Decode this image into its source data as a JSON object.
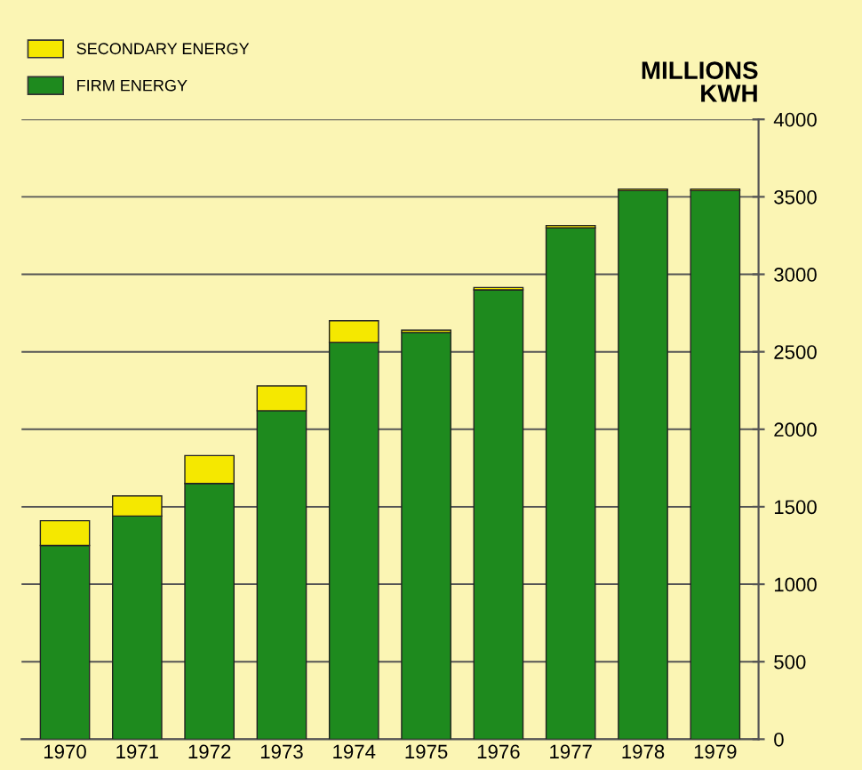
{
  "chart_data": {
    "type": "bar",
    "stacked": true,
    "ylabel": "MILLIONS\nKWH",
    "categories": [
      "1970",
      "1971",
      "1972",
      "1973",
      "1974",
      "1975",
      "1976",
      "1977",
      "1978",
      "1979"
    ],
    "series": [
      {
        "name": "FIRM ENERGY",
        "color": "#1e8a1e",
        "values": [
          1250,
          1440,
          1650,
          2120,
          2560,
          2625,
          2900,
          3300,
          3540,
          3540
        ]
      },
      {
        "name": "SECONDARY ENERGY",
        "color": "#f5e800",
        "values": [
          160,
          130,
          180,
          160,
          140,
          15,
          15,
          15,
          10,
          10
        ]
      }
    ],
    "ylim": [
      0,
      4000
    ],
    "yticks": [
      0,
      500,
      1000,
      1500,
      2000,
      2500,
      3000,
      3500,
      4000
    ],
    "grid": "y",
    "legend": "top left"
  }
}
